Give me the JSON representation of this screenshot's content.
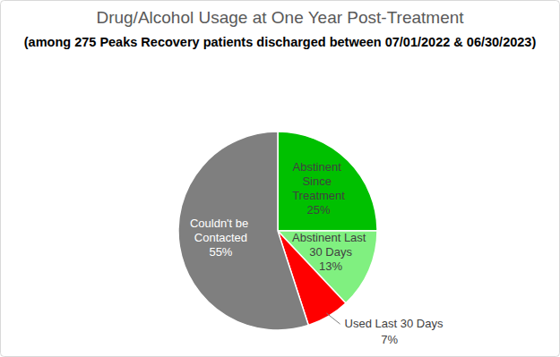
{
  "chart_data": {
    "type": "pie",
    "title": "Drug/Alcohol Usage at One Year Post-Treatment",
    "subtitle": "(among 275 Peaks Recovery patients discharged between 07/01/2022 & 06/30/2023)",
    "categories": [
      "Abstinent Since Treatment",
      "Abstinent Last 30 Days",
      "Used Last 30 Days",
      "Couldn't be Contacted"
    ],
    "values": [
      25,
      13,
      7,
      55
    ],
    "value_labels": [
      "25%",
      "13%",
      "7%",
      "55%"
    ],
    "colors": [
      "#00c000",
      "#80f080",
      "#ff0000",
      "#7f7f7f"
    ],
    "data_labels": true
  }
}
